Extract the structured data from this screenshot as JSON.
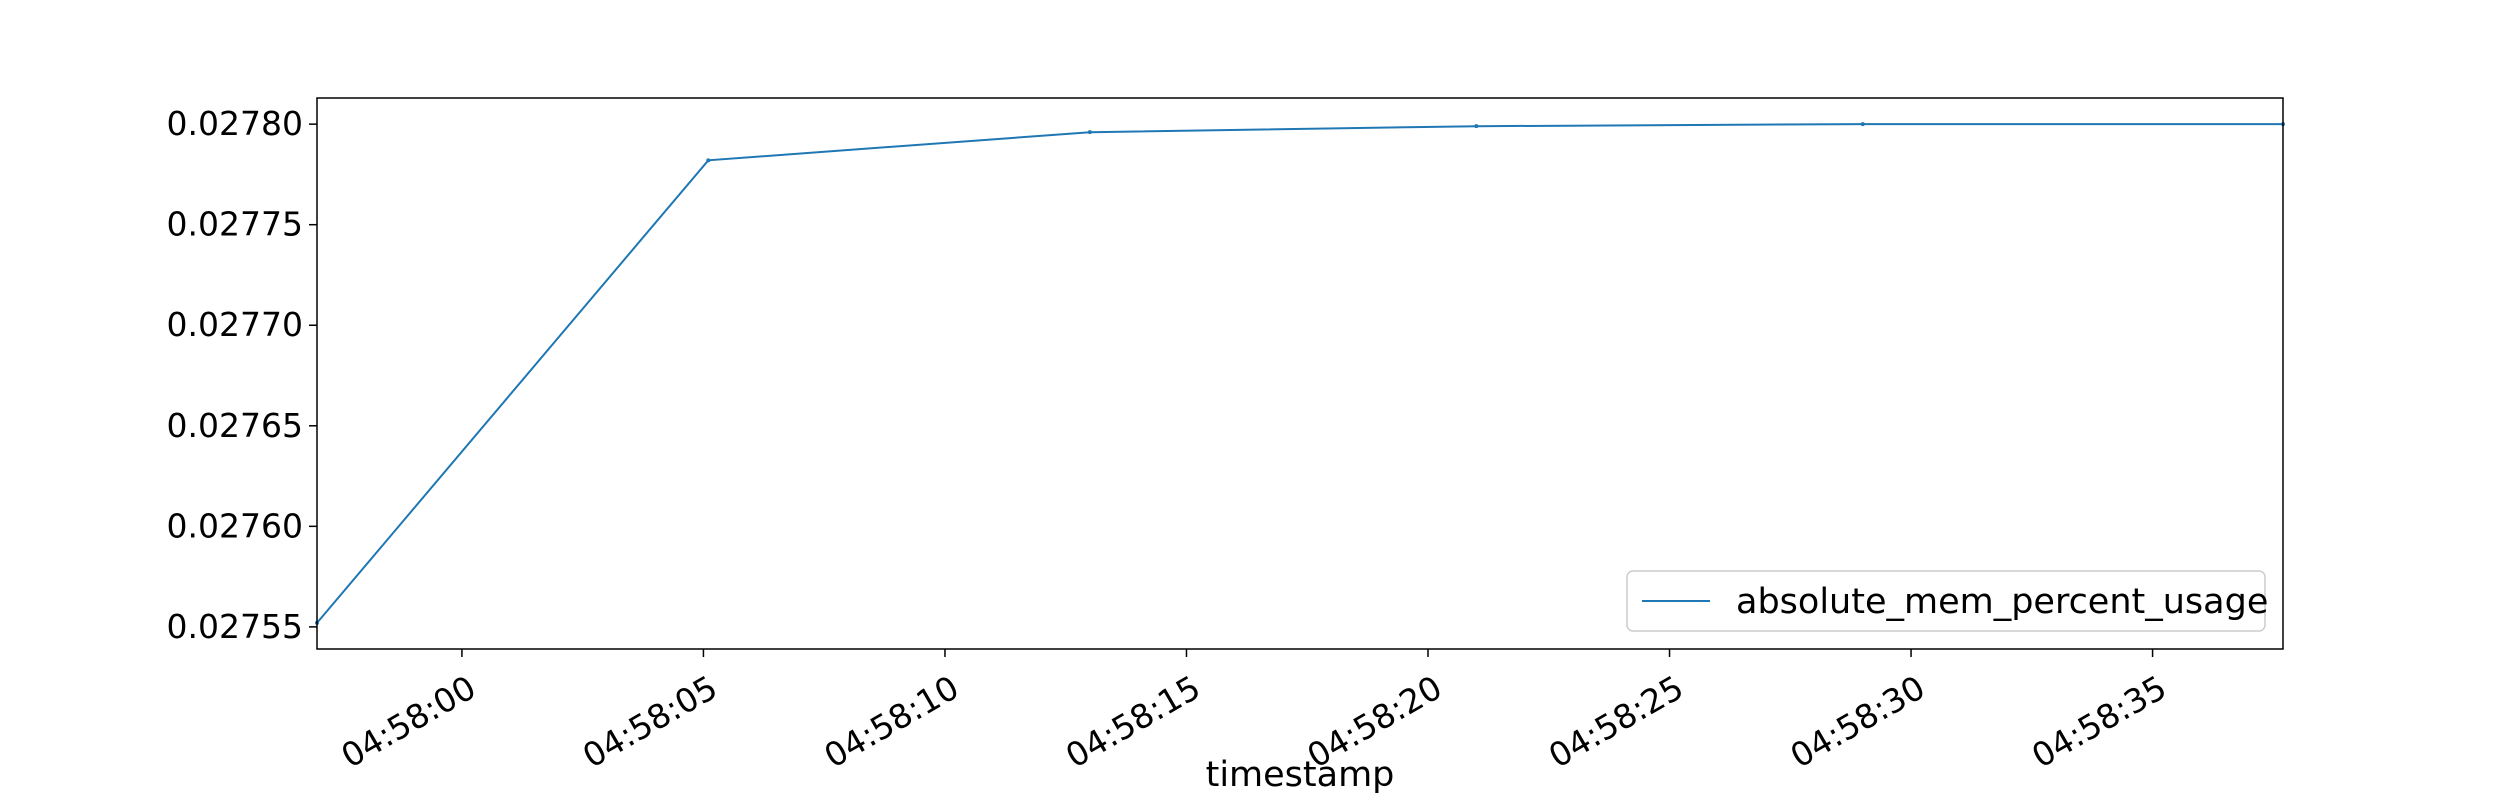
{
  "chart_data": {
    "type": "line",
    "title": "",
    "xlabel": "timestamp",
    "ylabel": "",
    "x_ticks": [
      "04:58:00",
      "04:58:05",
      "04:58:10",
      "04:58:15",
      "04:58:20",
      "04:58:25",
      "04:58:30",
      "04:58:35"
    ],
    "x_tick_seconds": [
      0,
      5,
      10,
      15,
      20,
      25,
      30,
      35
    ],
    "y_ticks": [
      "0.02755",
      "0.02760",
      "0.02765",
      "0.02770",
      "0.02775",
      "0.02780"
    ],
    "y_tick_values": [
      0.02755,
      0.0276,
      0.02765,
      0.0277,
      0.02775,
      0.0278
    ],
    "xlim_seconds": [
      -3.0,
      37.7
    ],
    "ylim": [
      0.027539,
      0.027813
    ],
    "grid": false,
    "legend": {
      "position": "bottom-right",
      "entries": [
        "absolute_mem_percent_usage"
      ]
    },
    "series": [
      {
        "name": "absolute_mem_percent_usage",
        "color": "#1f77b4",
        "x": [
          "04:57:57",
          "04:58:05.1",
          "04:58:13",
          "04:58:21",
          "04:58:29",
          "04:58:37.7"
        ],
        "x_seconds": [
          -3.0,
          5.1,
          13.0,
          21.0,
          29.0,
          37.7
        ],
        "values": [
          0.027552,
          0.027782,
          0.027796,
          0.027799,
          0.0278,
          0.0278
        ]
      }
    ]
  }
}
